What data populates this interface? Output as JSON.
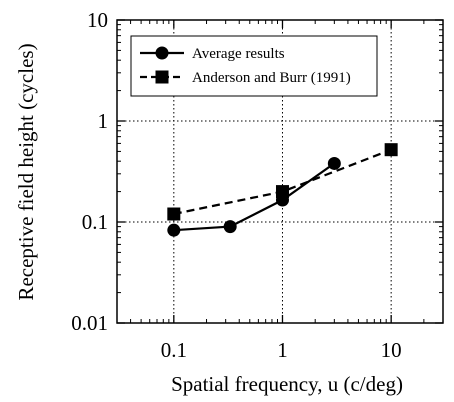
{
  "chart_data": {
    "type": "line",
    "title": "",
    "xlabel": "Spatial frequency, u (c/deg)",
    "ylabel": "Receptive field height (cycles)",
    "xscale": "log",
    "yscale": "log",
    "xlim": [
      0.03,
      30
    ],
    "ylim": [
      0.01,
      10
    ],
    "xticks": [
      0.1,
      1,
      10
    ],
    "xtick_labels": [
      "0.1",
      "1",
      "10"
    ],
    "yticks": [
      0.01,
      0.1,
      1,
      10
    ],
    "ytick_labels": [
      "0.01",
      "0.1",
      "1",
      "10"
    ],
    "grid": true,
    "legend_position": "top-left",
    "series": [
      {
        "name": "Average results",
        "marker": "circle",
        "line_style": "solid",
        "x": [
          0.1,
          0.33,
          1,
          3
        ],
        "y": [
          0.083,
          0.09,
          0.165,
          0.38
        ]
      },
      {
        "name": "Anderson and Burr (1991)",
        "marker": "square",
        "line_style": "dashed",
        "x": [
          0.1,
          1,
          10
        ],
        "y": [
          0.12,
          0.2,
          0.52
        ]
      }
    ]
  }
}
